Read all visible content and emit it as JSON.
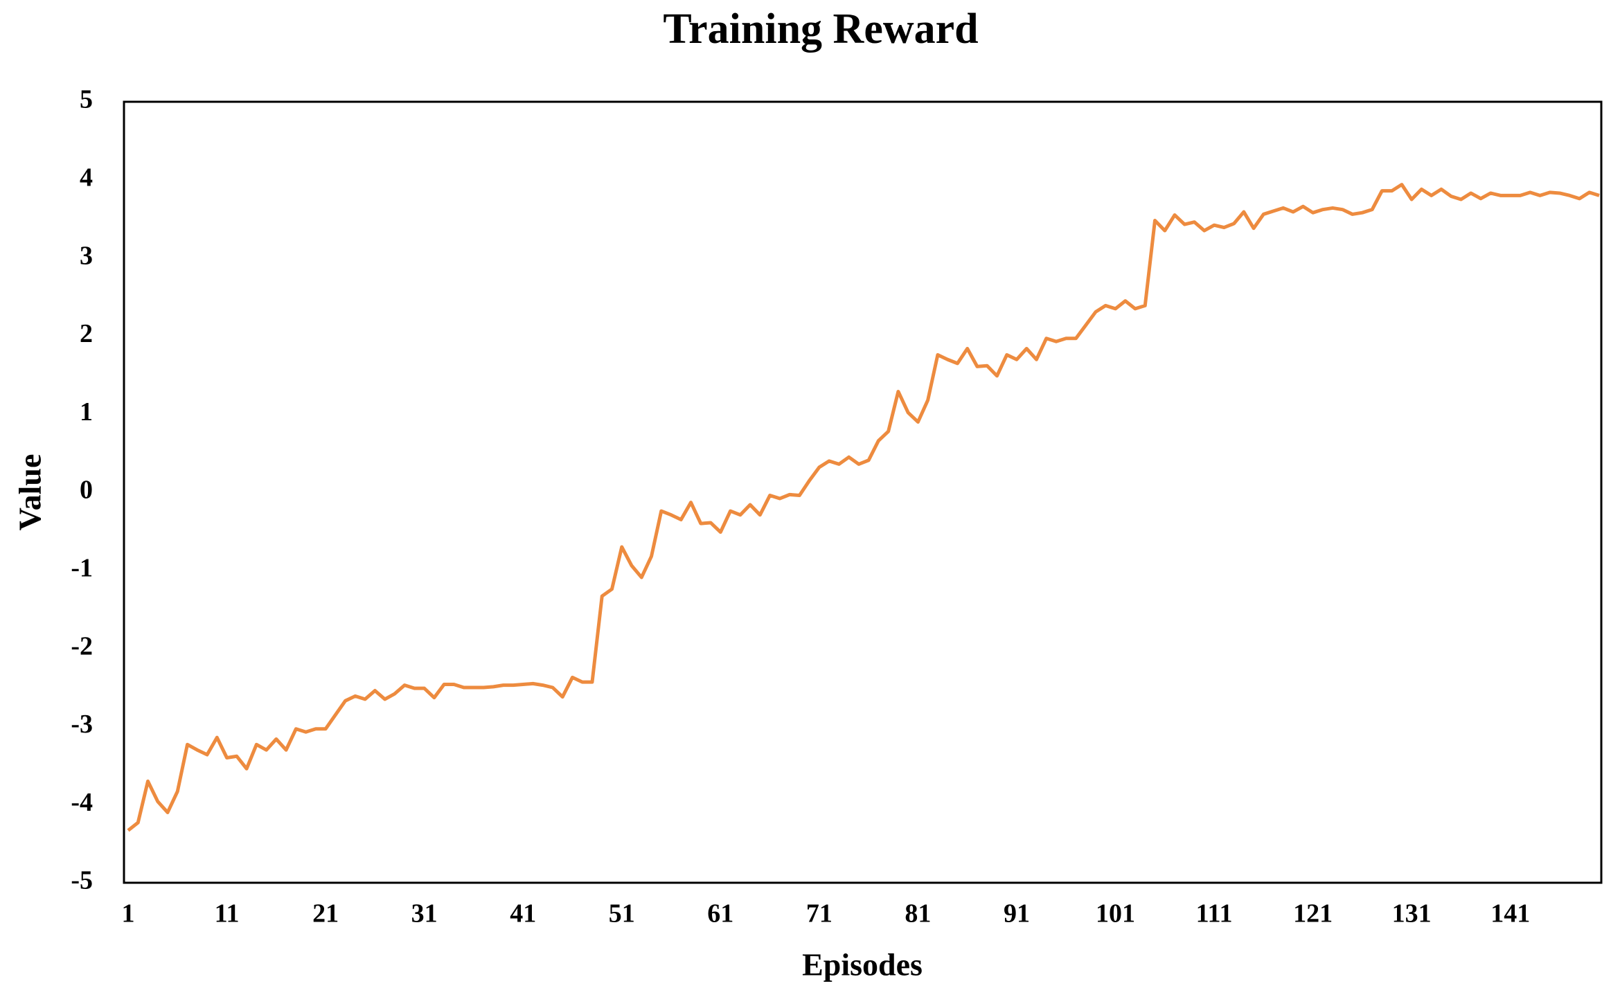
{
  "chart_data": {
    "type": "line",
    "title": "Training Reward",
    "x_label": "Episodes",
    "y_label": "Value",
    "color": "#ED8B3F",
    "x": [
      1,
      2,
      3,
      4,
      5,
      6,
      7,
      8,
      9,
      10,
      11,
      12,
      13,
      14,
      15,
      16,
      17,
      18,
      19,
      20,
      21,
      22,
      23,
      24,
      25,
      26,
      27,
      28,
      29,
      30,
      31,
      32,
      33,
      34,
      35,
      36,
      37,
      38,
      39,
      40,
      41,
      42,
      43,
      44,
      45,
      46,
      47,
      48,
      49,
      50,
      51,
      52,
      53,
      54,
      55,
      56,
      57,
      58,
      59,
      60,
      61,
      62,
      63,
      64,
      65,
      66,
      67,
      68,
      69,
      70,
      71,
      72,
      73,
      74,
      75,
      76,
      77,
      78,
      79,
      80,
      81,
      82,
      83,
      84,
      85,
      86,
      87,
      88,
      89,
      90,
      91,
      92,
      93,
      94,
      95,
      96,
      97,
      98,
      99,
      100,
      101,
      102,
      103,
      104,
      105,
      106,
      107,
      108,
      109,
      110,
      111,
      112,
      113,
      114,
      115,
      116,
      117,
      118,
      119,
      120,
      121,
      122,
      123,
      124,
      125,
      126,
      127,
      128,
      129,
      130,
      131,
      132,
      133,
      134,
      135,
      136,
      137,
      138,
      139,
      140,
      141,
      142,
      143,
      144,
      145,
      146,
      147,
      148,
      149,
      150
    ],
    "values": [
      -4.33,
      -4.23,
      -3.7,
      -3.96,
      -4.1,
      -3.83,
      -3.23,
      -3.3,
      -3.36,
      -3.14,
      -3.4,
      -3.38,
      -3.54,
      -3.23,
      -3.3,
      -3.16,
      -3.3,
      -3.03,
      -3.07,
      -3.03,
      -3.03,
      -2.85,
      -2.67,
      -2.61,
      -2.65,
      -2.54,
      -2.65,
      -2.58,
      -2.47,
      -2.51,
      -2.51,
      -2.63,
      -2.46,
      -2.46,
      -2.5,
      -2.5,
      -2.5,
      -2.49,
      -2.47,
      -2.47,
      -2.46,
      -2.45,
      -2.47,
      -2.5,
      -2.62,
      -2.37,
      -2.43,
      -2.43,
      -1.33,
      -1.24,
      -0.7,
      -0.94,
      -1.09,
      -0.82,
      -0.24,
      -0.29,
      -0.35,
      -0.13,
      -0.4,
      -0.39,
      -0.51,
      -0.24,
      -0.29,
      -0.16,
      -0.29,
      -0.04,
      -0.08,
      -0.03,
      -0.04,
      0.15,
      0.32,
      0.4,
      0.36,
      0.45,
      0.36,
      0.41,
      0.66,
      0.78,
      1.29,
      1.02,
      0.9,
      1.18,
      1.76,
      1.7,
      1.65,
      1.84,
      1.61,
      1.62,
      1.49,
      1.76,
      1.7,
      1.84,
      1.7,
      1.97,
      1.93,
      1.97,
      1.97,
      2.14,
      2.31,
      2.39,
      2.35,
      2.45,
      2.35,
      2.39,
      3.48,
      3.35,
      3.55,
      3.43,
      3.46,
      3.35,
      3.42,
      3.39,
      3.44,
      3.59,
      3.38,
      3.56,
      3.6,
      3.64,
      3.59,
      3.66,
      3.58,
      3.62,
      3.64,
      3.62,
      3.56,
      3.58,
      3.62,
      3.86,
      3.86,
      3.94,
      3.75,
      3.88,
      3.8,
      3.88,
      3.79,
      3.75,
      3.83,
      3.76,
      3.83,
      3.8,
      3.8,
      3.8,
      3.84,
      3.8,
      3.84,
      3.83,
      3.8,
      3.76,
      3.84,
      3.8
    ],
    "xlim": [
      1,
      150
    ],
    "xticks": [
      1,
      11,
      21,
      31,
      41,
      51,
      61,
      71,
      81,
      91,
      101,
      111,
      121,
      131,
      141
    ],
    "ylim": [
      -5,
      5
    ],
    "yticks": [
      -5,
      -4,
      -3,
      -2,
      -1,
      0,
      1,
      2,
      3,
      4,
      5
    ],
    "grid": false
  }
}
